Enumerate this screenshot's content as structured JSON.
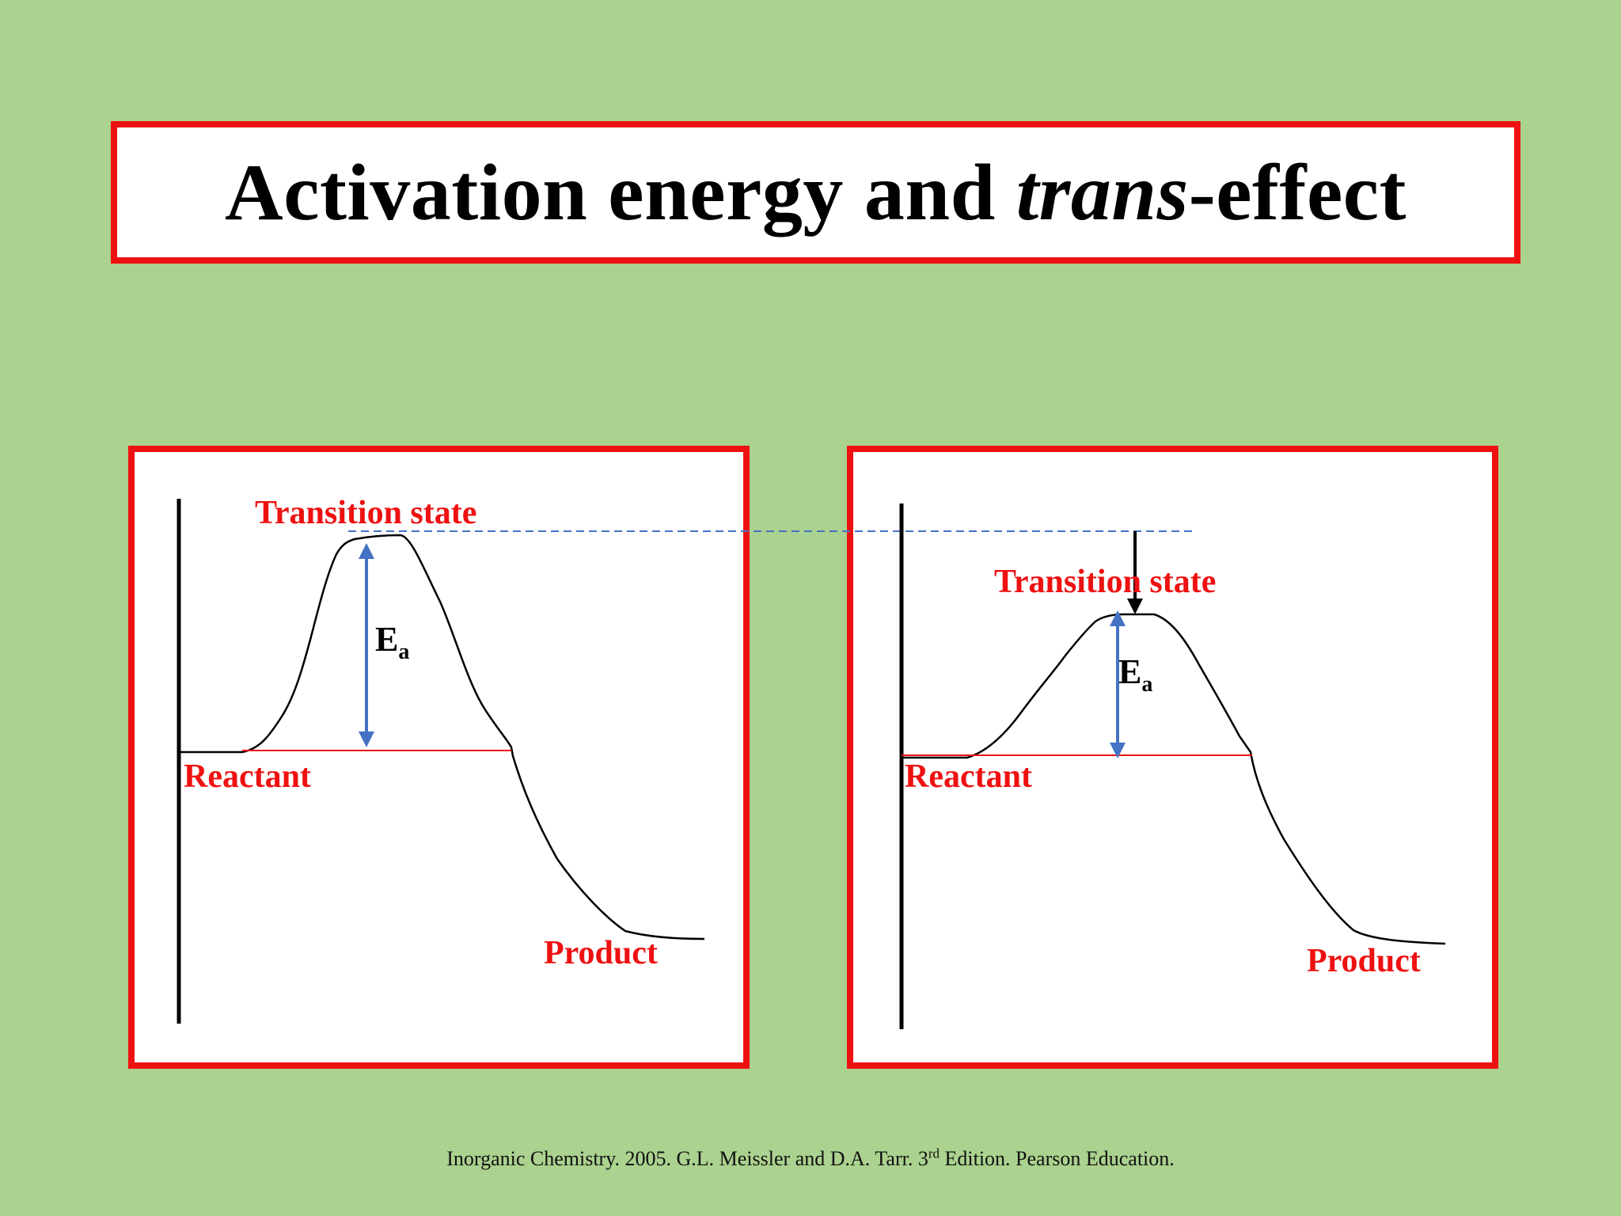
{
  "title": {
    "prefix": "Activation energy and ",
    "italic": "trans",
    "suffix": "-effect"
  },
  "left_diagram": {
    "transition_label": "Transition state",
    "reactant_label": "Reactant",
    "product_label": "Product",
    "ea_main": "E",
    "ea_sub": "a"
  },
  "right_diagram": {
    "transition_label": "Transition state",
    "reactant_label": "Reactant",
    "product_label": "Product",
    "ea_main": "E",
    "ea_sub": "a"
  },
  "citation": {
    "before_sup": "Inorganic Chemistry. 2005. G.L. Meissler and D.A. Tarr. 3",
    "sup": "rd",
    "after_sup": " Edition. Pearson Education."
  },
  "colors": {
    "background": "#abd28f",
    "frame": "#ee1111",
    "label": "#ee1111",
    "ea_arrow": "#4472c4",
    "dashed_line": "#4472c4",
    "reactant_line": "#ee1111",
    "curve": "#000000"
  }
}
